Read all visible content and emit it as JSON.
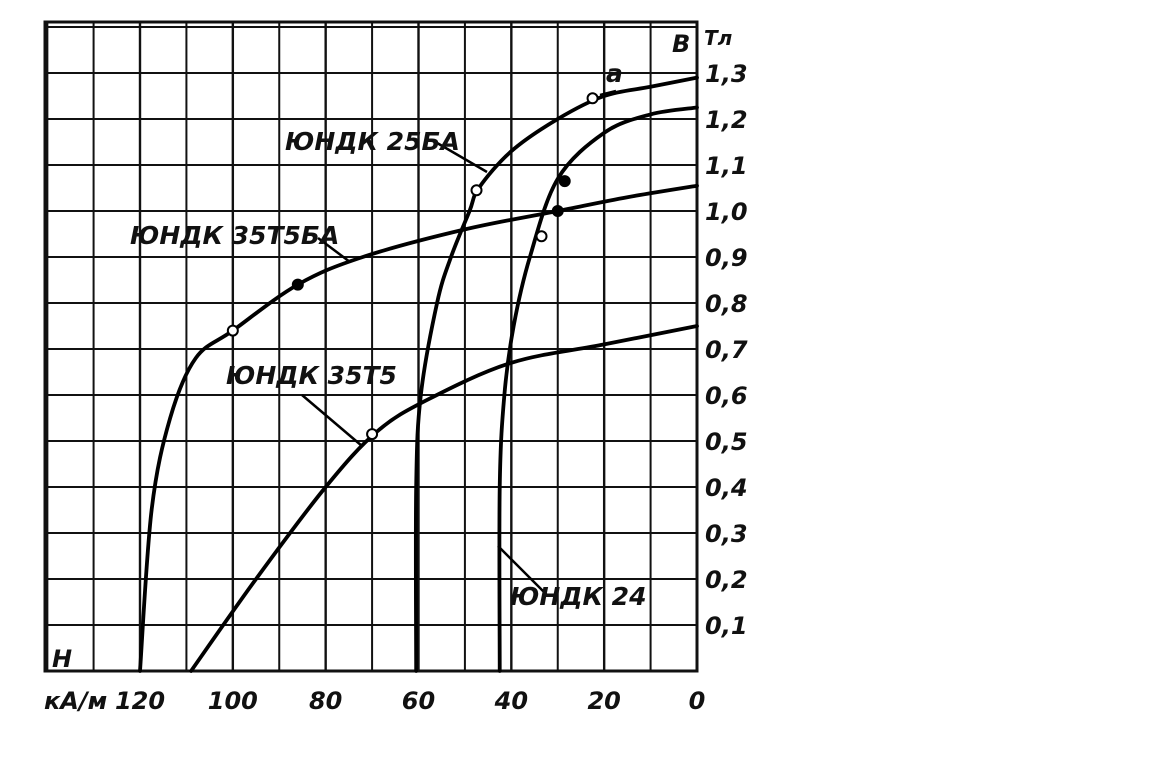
{
  "chart_data": {
    "type": "line",
    "title": "",
    "xlabel": "H",
    "x_unit": "кА/м",
    "ylabel": "B",
    "y_unit": "Тл",
    "x_reversed": true,
    "xlim": [
      0,
      140
    ],
    "ylim": [
      0,
      1.3
    ],
    "grid": true,
    "x_ticks": [
      {
        "value": 120,
        "label": "120"
      },
      {
        "value": 100,
        "label": "100"
      },
      {
        "value": 80,
        "label": "80"
      },
      {
        "value": 60,
        "label": "60"
      },
      {
        "value": 40,
        "label": "40"
      },
      {
        "value": 20,
        "label": "20"
      },
      {
        "value": 0,
        "label": "0"
      }
    ],
    "y_ticks": [
      {
        "value": 0.1,
        "label": "0,1"
      },
      {
        "value": 0.2,
        "label": "0,2"
      },
      {
        "value": 0.3,
        "label": "0,3"
      },
      {
        "value": 0.4,
        "label": "0,4"
      },
      {
        "value": 0.5,
        "label": "0,5"
      },
      {
        "value": 0.6,
        "label": "0,6"
      },
      {
        "value": 0.7,
        "label": "0,7"
      },
      {
        "value": 0.8,
        "label": "0,8"
      },
      {
        "value": 0.9,
        "label": "0,9"
      },
      {
        "value": 1.0,
        "label": "1,0"
      },
      {
        "value": 1.1,
        "label": "1,1"
      },
      {
        "value": 1.2,
        "label": "1,2"
      },
      {
        "value": 1.3,
        "label": "1,3"
      }
    ],
    "series": [
      {
        "name": "ЮНДК 35Т5БА",
        "points": [
          [
            120,
            0
          ],
          [
            117.5,
            0.35
          ],
          [
            113.5,
            0.55
          ],
          [
            108,
            0.68
          ],
          [
            100,
            0.74
          ],
          [
            86,
            0.84
          ],
          [
            72,
            0.9
          ],
          [
            50,
            0.96
          ],
          [
            30,
            1.0
          ],
          [
            15,
            1.03
          ],
          [
            0,
            1.055
          ]
        ],
        "markers": [
          {
            "x": 100,
            "y": 0.74,
            "shape": "open"
          },
          {
            "x": 86,
            "y": 0.84,
            "shape": "filled"
          },
          {
            "x": 30,
            "y": 1.0,
            "shape": "filled"
          }
        ]
      },
      {
        "name": "ЮНДК 35Т5",
        "points": [
          [
            109,
            0
          ],
          [
            95,
            0.2
          ],
          [
            80,
            0.4
          ],
          [
            69,
            0.52
          ],
          [
            58,
            0.59
          ],
          [
            40,
            0.67
          ],
          [
            20,
            0.71
          ],
          [
            0,
            0.75
          ]
        ],
        "markers": [
          {
            "x": 70,
            "y": 0.515,
            "shape": "open"
          }
        ]
      },
      {
        "name": "ЮНДК 25БА",
        "points": [
          [
            60.5,
            0
          ],
          [
            60.5,
            0.4
          ],
          [
            59.5,
            0.6
          ],
          [
            56,
            0.8
          ],
          [
            53,
            0.9
          ],
          [
            49,
            1.0
          ],
          [
            47,
            1.05
          ],
          [
            40,
            1.13
          ],
          [
            30,
            1.2
          ],
          [
            20,
            1.25
          ],
          [
            10,
            1.27
          ],
          [
            0,
            1.29
          ]
        ],
        "markers": [
          {
            "x": 47.5,
            "y": 1.045,
            "shape": "open"
          },
          {
            "x": 22.5,
            "y": 1.245,
            "shape": "open"
          }
        ]
      },
      {
        "name": "ЮНДК 24",
        "points": [
          [
            42.5,
            0
          ],
          [
            42.5,
            0.4
          ],
          [
            41.5,
            0.6
          ],
          [
            39.5,
            0.75
          ],
          [
            36,
            0.9
          ],
          [
            30,
            1.07
          ],
          [
            20,
            1.17
          ],
          [
            10,
            1.21
          ],
          [
            0,
            1.225
          ]
        ],
        "markers": [
          {
            "x": 33.5,
            "y": 0.945,
            "shape": "open"
          },
          {
            "x": 28.5,
            "y": 1.065,
            "shape": "filled"
          }
        ]
      }
    ],
    "annotations": [
      {
        "text": "ЮНДК 25БА",
        "series": "ЮНДК 25БА"
      },
      {
        "text": "ЮНДК 35Т5БА",
        "series": "ЮНДК 35Т5БА"
      },
      {
        "text": "ЮНДК 35Т5",
        "series": "ЮНДК 35Т5"
      },
      {
        "text": "ЮНДК 24",
        "series": "ЮНДК 24"
      },
      {
        "text": "a",
        "series": "ЮНДК 25БА"
      }
    ]
  }
}
